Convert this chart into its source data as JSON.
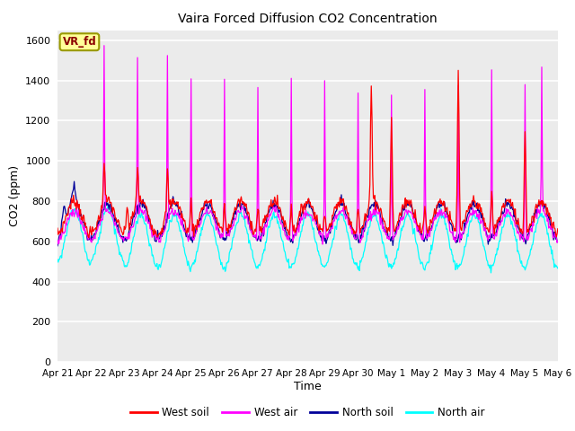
{
  "title": "Vaira Forced Diffusion CO2 Concentration",
  "xlabel": "Time",
  "ylabel": "CO2 (ppm)",
  "ylim": [
    0,
    1650
  ],
  "yticks": [
    0,
    200,
    400,
    600,
    800,
    1000,
    1200,
    1400,
    1600
  ],
  "n_days": 15,
  "xtick_labels": [
    "Apr 21",
    "Apr 22",
    "Apr 23",
    "Apr 24",
    "Apr 25",
    "Apr 26",
    "Apr 27",
    "Apr 28",
    "Apr 29",
    "Apr 30",
    "May 1",
    "May 2",
    "May 3",
    "May 4",
    "May 5",
    "May 6"
  ],
  "colors": {
    "west_soil": "#FF0000",
    "west_air": "#FF00FF",
    "north_soil": "#000099",
    "north_air": "#00FFFF"
  },
  "legend_label": "VR_fd",
  "plot_bg": "#EBEBEB",
  "fig_bg": "#FFFFFF",
  "grid_color": "#FFFFFF",
  "annotation_fg": "#8B0000",
  "annotation_bg": "#FFFF99",
  "annotation_edge": "#999900"
}
